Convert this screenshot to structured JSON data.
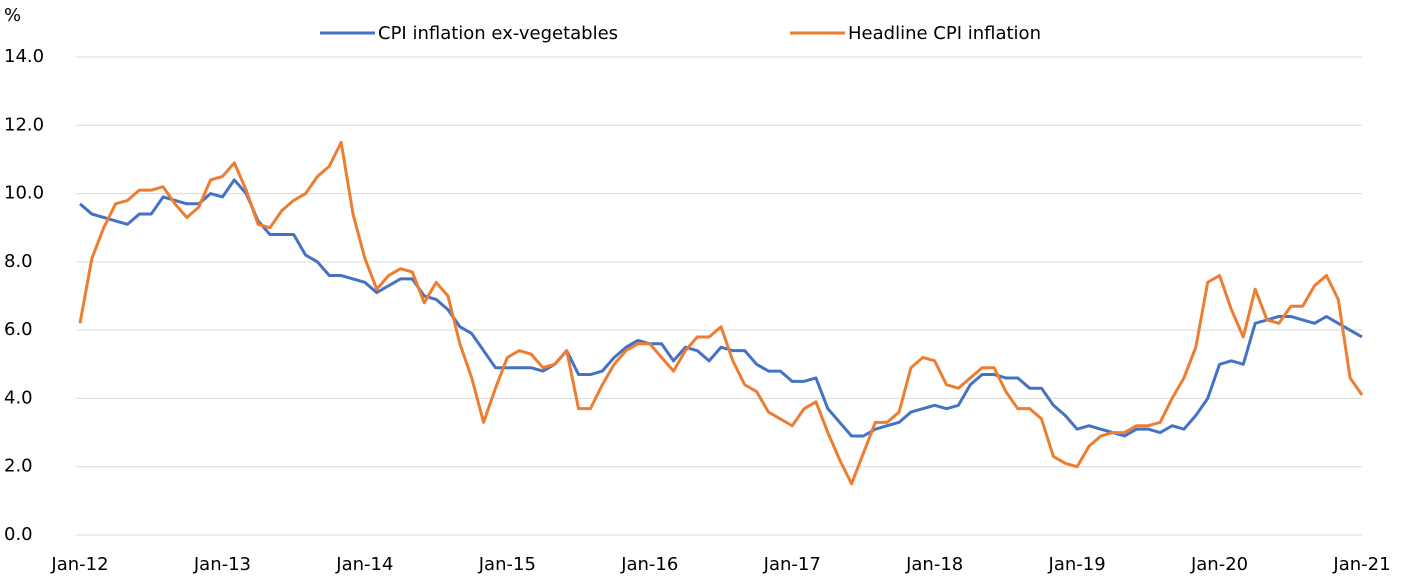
{
  "chart_data": {
    "type": "line",
    "y_label": "%",
    "categories": [
      "Jan-12",
      null,
      null,
      null,
      null,
      null,
      null,
      null,
      null,
      null,
      null,
      null,
      "Jan-13",
      null,
      null,
      null,
      null,
      null,
      null,
      null,
      null,
      null,
      null,
      null,
      "Jan-14",
      null,
      null,
      null,
      null,
      null,
      null,
      null,
      null,
      null,
      null,
      null,
      "Jan-15",
      null,
      null,
      null,
      null,
      null,
      null,
      null,
      null,
      null,
      null,
      null,
      "Jan-16",
      null,
      null,
      null,
      null,
      null,
      null,
      null,
      null,
      null,
      null,
      null,
      "Jan-17",
      null,
      null,
      null,
      null,
      null,
      null,
      null,
      null,
      null,
      null,
      null,
      "Jan-18",
      null,
      null,
      null,
      null,
      null,
      null,
      null,
      null,
      null,
      null,
      null,
      "Jan-19",
      null,
      null,
      null,
      null,
      null,
      null,
      null,
      null,
      null,
      null,
      null,
      "Jan-20",
      null,
      null,
      null,
      null,
      null,
      null,
      null,
      null,
      null,
      null,
      null,
      "Jan-21"
    ],
    "series": [
      {
        "name": "CPI inflation ex-vegetables",
        "color": "#4472c4",
        "values": [
          9.7,
          9.4,
          9.3,
          9.2,
          9.1,
          9.4,
          9.4,
          9.9,
          9.8,
          9.7,
          9.7,
          10.0,
          9.9,
          10.4,
          10.0,
          9.2,
          8.8,
          8.8,
          8.8,
          8.2,
          8.0,
          7.6,
          7.6,
          7.5,
          7.4,
          7.1,
          7.3,
          7.5,
          7.5,
          7.0,
          6.9,
          6.6,
          6.1,
          5.9,
          5.4,
          4.9,
          4.9,
          4.9,
          4.9,
          4.8,
          5.0,
          5.4,
          4.7,
          4.7,
          4.8,
          5.2,
          5.5,
          5.7,
          5.6,
          5.6,
          5.1,
          5.5,
          5.4,
          5.1,
          5.5,
          5.4,
          5.4,
          5.0,
          4.8,
          4.8,
          4.5,
          4.5,
          4.6,
          3.7,
          3.3,
          2.9,
          2.9,
          3.1,
          3.2,
          3.3,
          3.6,
          3.7,
          3.8,
          3.7,
          3.8,
          4.4,
          4.7,
          4.7,
          4.6,
          4.6,
          4.3,
          4.3,
          3.8,
          3.5,
          3.1,
          3.2,
          3.1,
          3.0,
          2.9,
          3.1,
          3.1,
          3.0,
          3.2,
          3.1,
          3.5,
          4.0,
          5.0,
          5.1,
          5.0,
          6.2,
          6.3,
          6.4,
          6.4,
          6.3,
          6.2,
          6.4,
          6.2,
          6.0,
          5.8
        ]
      },
      {
        "name": "Headline CPI inflation",
        "color": "#ed7d31",
        "values": [
          6.2,
          8.1,
          9.0,
          9.7,
          9.8,
          10.1,
          10.1,
          10.2,
          9.7,
          9.3,
          9.6,
          10.4,
          10.5,
          10.9,
          10.1,
          9.1,
          9.0,
          9.5,
          9.8,
          10.0,
          10.5,
          10.8,
          11.5,
          9.4,
          8.1,
          7.2,
          7.6,
          7.8,
          7.7,
          6.8,
          7.4,
          7.0,
          5.6,
          4.6,
          3.3,
          4.3,
          5.2,
          5.4,
          5.3,
          4.9,
          5.0,
          5.4,
          3.7,
          3.7,
          4.4,
          5.0,
          5.4,
          5.6,
          5.6,
          5.2,
          4.8,
          5.4,
          5.8,
          5.8,
          6.1,
          5.1,
          4.4,
          4.2,
          3.6,
          3.4,
          3.2,
          3.7,
          3.9,
          3.0,
          2.2,
          1.5,
          2.4,
          3.3,
          3.3,
          3.6,
          4.9,
          5.2,
          5.1,
          4.4,
          4.3,
          4.6,
          4.9,
          4.9,
          4.2,
          3.7,
          3.7,
          3.4,
          2.3,
          2.1,
          2.0,
          2.6,
          2.9,
          3.0,
          3.0,
          3.2,
          3.2,
          3.3,
          4.0,
          4.6,
          5.5,
          7.4,
          7.6,
          6.6,
          5.8,
          7.2,
          6.3,
          6.2,
          6.7,
          6.7,
          7.3,
          7.6,
          6.9,
          4.6,
          4.1
        ]
      }
    ],
    "ylim": [
      0,
      14
    ],
    "yticks": [
      {
        "value": 0,
        "label": "0.0"
      },
      {
        "value": 2,
        "label": "2.0"
      },
      {
        "value": 4,
        "label": "4.0"
      },
      {
        "value": 6,
        "label": "6.0"
      },
      {
        "value": 8,
        "label": "8.0"
      },
      {
        "value": 10,
        "label": "10.0"
      },
      {
        "value": 12,
        "label": "12.0"
      },
      {
        "value": 14,
        "label": "14.0"
      }
    ],
    "grid": true,
    "legend": "top"
  }
}
